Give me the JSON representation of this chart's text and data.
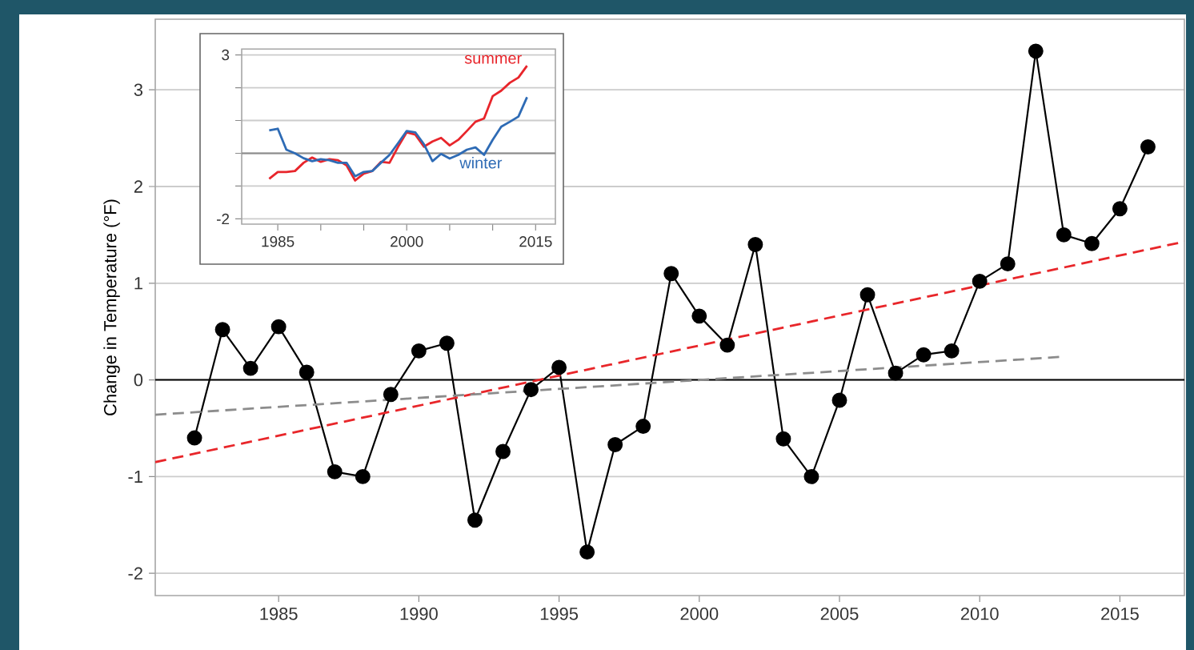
{
  "chart_data": [
    {
      "type": "line",
      "ylabel": "Change in Temperature (°F)",
      "xlim": [
        1980.6,
        2017.3
      ],
      "ylim": [
        -2.23,
        3.73
      ],
      "xticks": [
        1985,
        1990,
        1995,
        2000,
        2005,
        2010,
        2015
      ],
      "yticks": [
        -2,
        -1,
        0,
        1,
        2,
        3
      ],
      "grid": "y",
      "ref_lines": [
        {
          "axis": "y",
          "value": 0,
          "color": "#000000"
        }
      ],
      "series": [
        {
          "color": "#000000",
          "marker": "circle",
          "line_style": "solid",
          "x": [
            1982,
            1983,
            1984,
            1985,
            1986,
            1987,
            1988,
            1989,
            1990,
            1991,
            1992,
            1993,
            1994,
            1995,
            1996,
            1997,
            1998,
            1999,
            2000,
            2001,
            2002,
            2003,
            2004,
            2005,
            2006,
            2007,
            2008,
            2009,
            2010,
            2011,
            2012,
            2013,
            2014,
            2015,
            2016
          ],
          "values": [
            -0.6,
            0.52,
            0.12,
            0.55,
            0.08,
            -0.95,
            -1.0,
            -0.15,
            0.3,
            0.38,
            -1.45,
            -0.74,
            -0.1,
            0.13,
            -1.78,
            -0.67,
            -0.48,
            1.1,
            0.66,
            0.36,
            1.4,
            -0.61,
            -1.0,
            -0.21,
            0.88,
            0.07,
            0.26,
            0.3,
            1.02,
            1.2,
            3.4,
            1.5,
            1.41,
            1.77,
            2.41
          ]
        },
        {
          "color": "#e8262a",
          "marker": "none",
          "line_style": "dashed",
          "x": [
            1980.6,
            2017.3
          ],
          "values": [
            -0.85,
            1.43
          ]
        },
        {
          "color": "#8c8c8c",
          "marker": "none",
          "line_style": "dashed",
          "x": [
            1980.6,
            2013
          ],
          "values": [
            -0.36,
            0.24
          ]
        }
      ]
    },
    {
      "type": "line",
      "xlim": [
        1980.8,
        2017.3
      ],
      "ylim": [
        -2.16,
        3.18
      ],
      "xticks": [
        1985,
        {
          "value": 1990,
          "label": null
        },
        {
          "value": 1995,
          "label": null
        },
        2000,
        {
          "value": 2005,
          "label": null
        },
        {
          "value": 2010,
          "label": null
        },
        2015
      ],
      "yticks": [
        -2,
        {
          "value": -1,
          "label": null
        },
        {
          "value": 0,
          "label": null
        },
        {
          "value": 1,
          "label": null
        },
        {
          "value": 2,
          "label": null
        },
        3
      ],
      "grid": "y",
      "ref_lines": [
        {
          "axis": "y",
          "value": 0,
          "color": "#8c8c8c"
        }
      ],
      "series": [
        {
          "name": "summer",
          "color": "#e8252b",
          "marker": "none",
          "line_style": "solid",
          "x": [
            1984,
            1985,
            1986,
            1987,
            1988,
            1989,
            1990,
            1991,
            1992,
            1993,
            1994,
            1995,
            1996,
            1997,
            1998,
            1999,
            2000,
            2001,
            2002,
            2003,
            2004,
            2005,
            2006,
            2007,
            2008,
            2009,
            2010,
            2011,
            2012,
            2013,
            2014
          ],
          "values": [
            -0.78,
            -0.57,
            -0.57,
            -0.54,
            -0.29,
            -0.13,
            -0.26,
            -0.18,
            -0.21,
            -0.37,
            -0.83,
            -0.62,
            -0.54,
            -0.26,
            -0.29,
            0.2,
            0.64,
            0.57,
            0.2,
            0.36,
            0.47,
            0.24,
            0.41,
            0.68,
            0.96,
            1.06,
            1.74,
            1.91,
            2.15,
            2.31,
            2.67
          ]
        },
        {
          "name": "winter",
          "color": "#2e6bb5",
          "marker": "none",
          "line_style": "solid",
          "x": [
            1984,
            1985,
            1986,
            1987,
            1988,
            1989,
            1990,
            1991,
            1992,
            1993,
            1994,
            1995,
            1996,
            1997,
            1998,
            1999,
            2000,
            2001,
            2002,
            2003,
            2004,
            2005,
            2006,
            2007,
            2008,
            2009,
            2010,
            2011,
            2012,
            2013,
            2014
          ],
          "values": [
            0.7,
            0.75,
            0.11,
            0.0,
            -0.15,
            -0.24,
            -0.18,
            -0.21,
            -0.29,
            -0.29,
            -0.7,
            -0.57,
            -0.54,
            -0.29,
            -0.05,
            0.31,
            0.68,
            0.64,
            0.28,
            -0.24,
            -0.02,
            -0.16,
            -0.05,
            0.11,
            0.18,
            -0.05,
            0.41,
            0.81,
            0.96,
            1.12,
            1.71
          ]
        }
      ]
    }
  ]
}
